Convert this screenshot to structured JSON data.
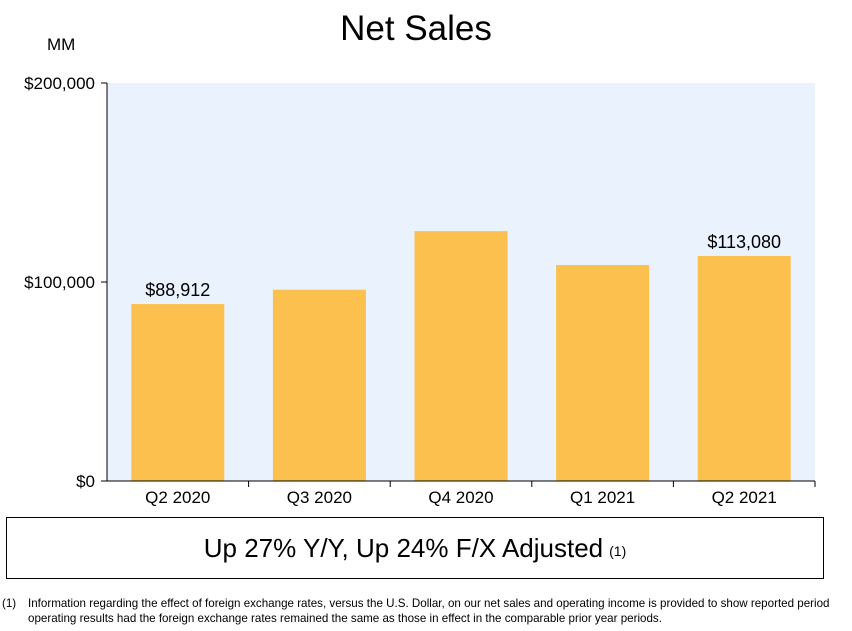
{
  "chart_data": {
    "type": "bar",
    "title": "Net Sales",
    "unit_label": "MM",
    "categories": [
      "Q2 2020",
      "Q3 2020",
      "Q4 2020",
      "Q1 2021",
      "Q2 2021"
    ],
    "values": [
      88912,
      96145,
      125555,
      108518,
      113080
    ],
    "data_labels": [
      "$88,912",
      "",
      "",
      "",
      "$113,080"
    ],
    "ylim": [
      0,
      200000
    ],
    "yticks": [
      {
        "value": 0,
        "label": "$0"
      },
      {
        "value": 100000,
        "label": "$100,000"
      },
      {
        "value": 200000,
        "label": "$200,000"
      }
    ],
    "bar_color": "#FBC04E",
    "plot_bg": "#EAF2FD",
    "grid": false
  },
  "callout": {
    "text": "Up 27% Y/Y, Up 24% F/X Adjusted",
    "ref": "(1)"
  },
  "footnote": {
    "number": "(1)",
    "text": "Information regarding the effect of foreign exchange rates, versus the U.S. Dollar, on our net sales and operating income is provided to show reported period operating results had the foreign exchange rates remained the same as those in effect in the comparable prior year periods."
  }
}
